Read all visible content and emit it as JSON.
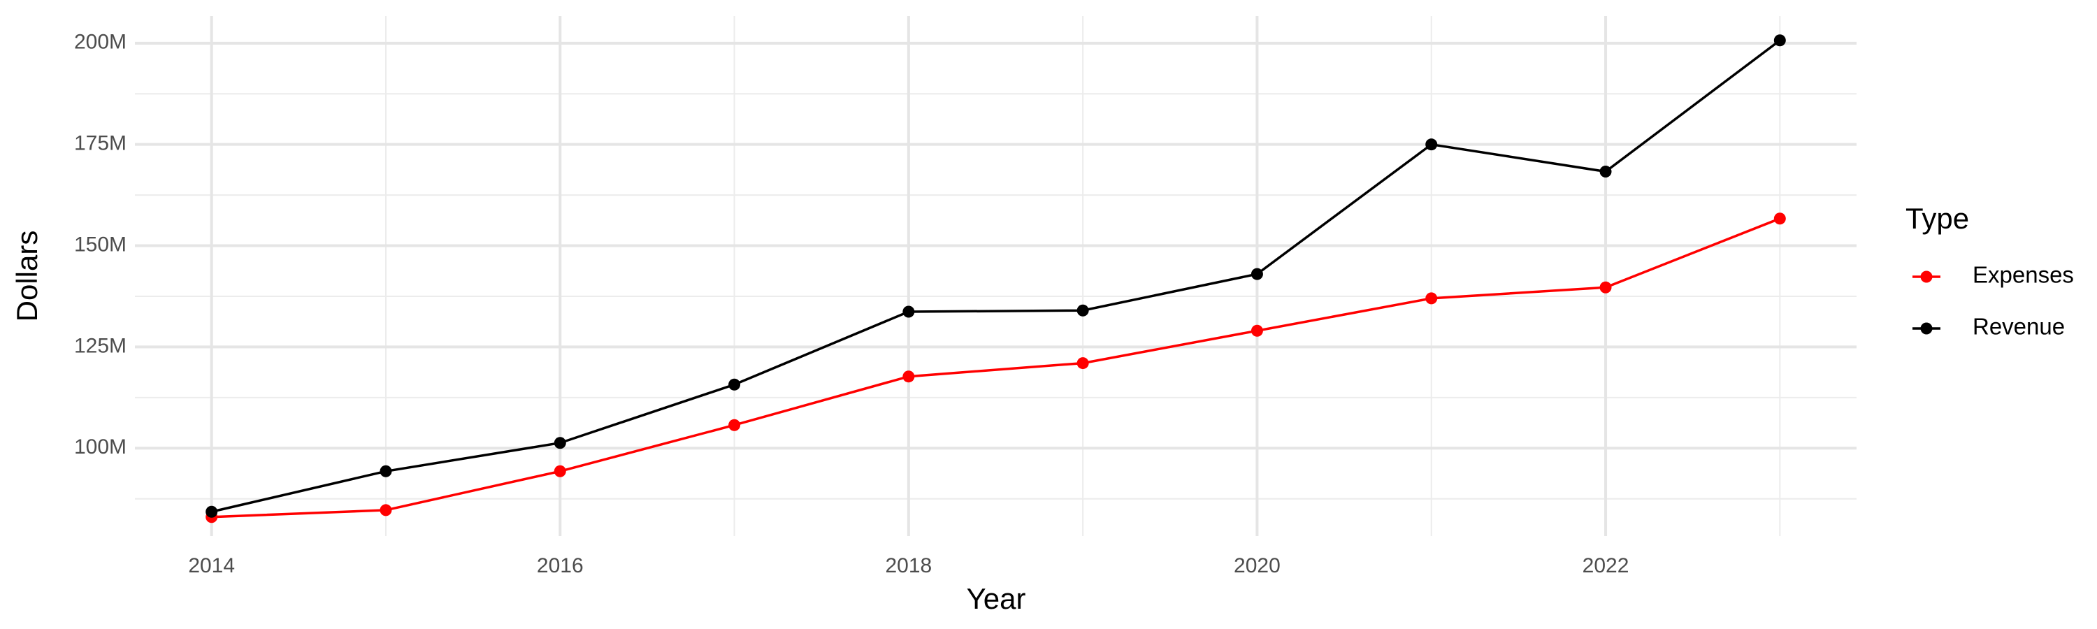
{
  "chart_data": {
    "type": "line",
    "x_label": "Year",
    "y_label": "Dollars",
    "legend_title": "Type",
    "legend": "right",
    "grid": true,
    "x": [
      2014,
      2015,
      2016,
      2017,
      2018,
      2019,
      2020,
      2021,
      2022,
      2023
    ],
    "series": [
      {
        "name": "Expenses",
        "color": "#ff0000",
        "values": [
          83000000,
          84700000,
          94300000,
          105700000,
          117700000,
          121000000,
          129000000,
          137000000,
          139700000,
          156700000
        ]
      },
      {
        "name": "Revenue",
        "color": "#000000",
        "values": [
          84300000,
          94300000,
          101300000,
          115700000,
          133700000,
          134000000,
          143000000,
          175000000,
          168300000,
          200700000
        ]
      }
    ],
    "xlim": [
      2013.56,
      2023.44
    ],
    "xticks": [
      2014,
      2016,
      2018,
      2020,
      2022
    ],
    "ylim": [
      78300000,
      206700000
    ],
    "yticks": [
      {
        "value": 100000000,
        "label": "100M"
      },
      {
        "value": 125000000,
        "label": "125M"
      },
      {
        "value": 150000000,
        "label": "150M"
      },
      {
        "value": 175000000,
        "label": "175M"
      },
      {
        "value": 200000000,
        "label": "200M"
      }
    ]
  }
}
